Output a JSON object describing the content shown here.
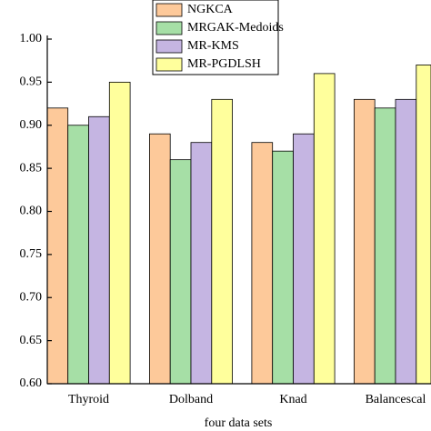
{
  "chart_data": {
    "type": "bar",
    "x_label": "four data sets",
    "categories": [
      "Thyroid",
      "Dolband",
      "Knad",
      "Balancescal"
    ],
    "series": [
      {
        "name": "NGKCA",
        "color": "#fdc99a",
        "values": [
          0.92,
          0.89,
          0.88,
          0.93
        ]
      },
      {
        "name": "MRGAK-Medoids",
        "color": "#a6dfa6",
        "values": [
          0.9,
          0.86,
          0.87,
          0.92
        ]
      },
      {
        "name": "MR-KMS",
        "color": "#c5b5e2",
        "values": [
          0.91,
          0.88,
          0.89,
          0.93
        ]
      },
      {
        "name": "MR-PGDLSH",
        "color": "#ffff9c",
        "values": [
          0.95,
          0.93,
          0.96,
          0.97
        ]
      }
    ],
    "ylim": [
      0.6,
      1.0
    ],
    "yticks": [
      {
        "value": 0.6,
        "label": "0.60"
      },
      {
        "value": 0.65,
        "label": "0.65"
      },
      {
        "value": 0.7,
        "label": "0.70"
      },
      {
        "value": 0.75,
        "label": "0.75"
      },
      {
        "value": 0.8,
        "label": "0.80"
      },
      {
        "value": 0.85,
        "label": "0.85"
      },
      {
        "value": 0.9,
        "label": "0.90"
      },
      {
        "value": 0.95,
        "label": "0.95"
      },
      {
        "value": 1.0,
        "label": "1.00"
      }
    ],
    "legend": "top-center"
  }
}
